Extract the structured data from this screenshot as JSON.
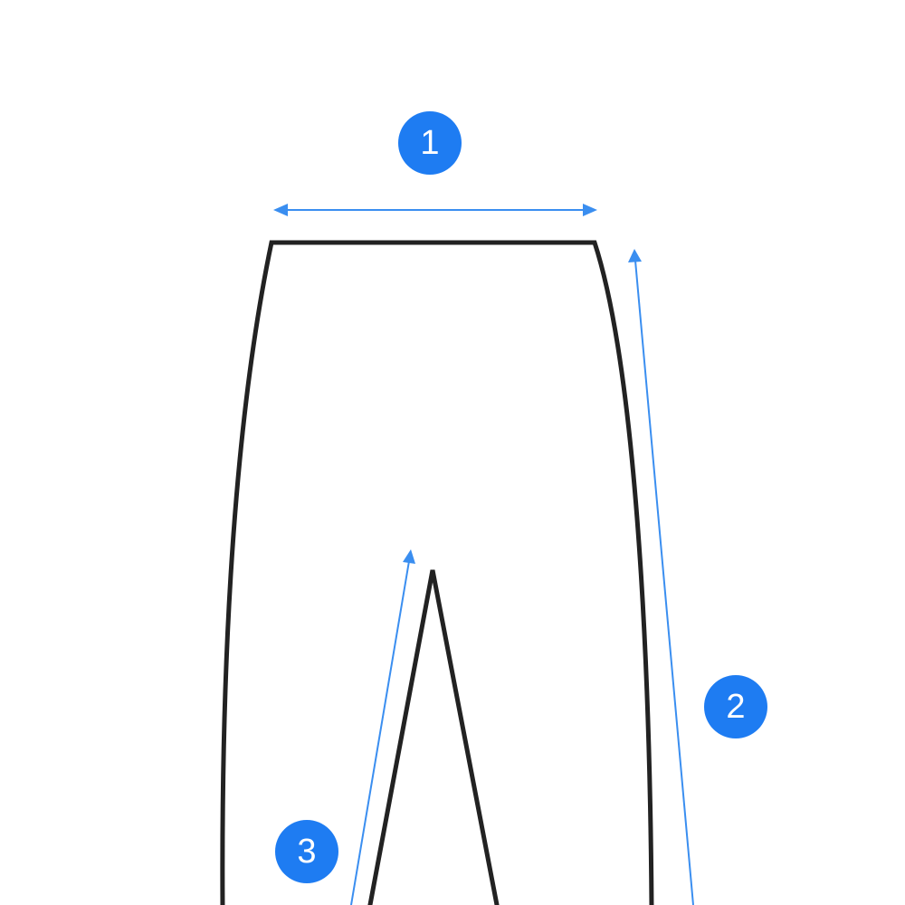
{
  "colors": {
    "accent": "#1e7cf2",
    "measure_line": "#3a8ef0",
    "outline": "#222222",
    "background": "#ffffff"
  },
  "badges": [
    {
      "label": "1",
      "meaning": "waist-width"
    },
    {
      "label": "2",
      "meaning": "outseam-length"
    },
    {
      "label": "3",
      "meaning": "inseam-length"
    }
  ]
}
